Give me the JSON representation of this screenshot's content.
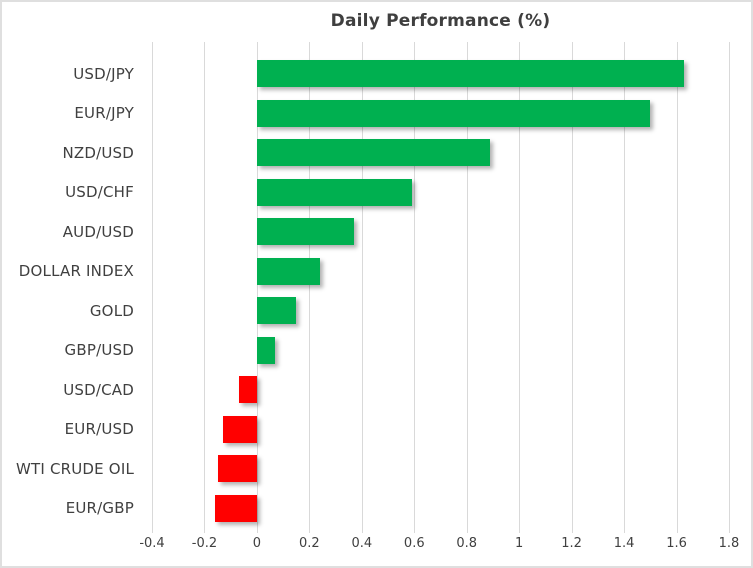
{
  "chart_data": {
    "type": "bar",
    "orientation": "horizontal",
    "title": "Daily Performance (%)",
    "categories": [
      "USD/JPY",
      "EUR/JPY",
      "NZD/USD",
      "USD/CHF",
      "AUD/USD",
      "DOLLAR INDEX",
      "GOLD",
      "GBP/USD",
      "USD/CAD",
      "EUR/USD",
      "WTI CRUDE OIL",
      "EUR/GBP"
    ],
    "values": [
      1.63,
      1.5,
      0.89,
      0.59,
      0.37,
      0.24,
      0.15,
      0.07,
      -0.07,
      -0.13,
      -0.15,
      -0.16
    ],
    "xlabel": "",
    "ylabel": "",
    "xlim": [
      -0.4,
      1.8
    ],
    "x_ticks": [
      -0.4,
      -0.2,
      0,
      0.2,
      0.4,
      0.6,
      0.8,
      1,
      1.2,
      1.4,
      1.6,
      1.8
    ],
    "x_tick_labels": [
      "-0.4",
      "-0.2",
      "0",
      "0.2",
      "0.4",
      "0.6",
      "0.8",
      "1",
      "1.2",
      "1.4",
      "1.6",
      "1.8"
    ],
    "grid": true,
    "legend": false,
    "colors": {
      "positive": "#00B050",
      "negative": "#FF0000",
      "gridline": "#D9D9D9",
      "title_text": "#3F3F3F",
      "label_text": "#404040",
      "tick_text": "#404040",
      "border": "#DFDFDF",
      "background": "#FFFFFF"
    }
  }
}
